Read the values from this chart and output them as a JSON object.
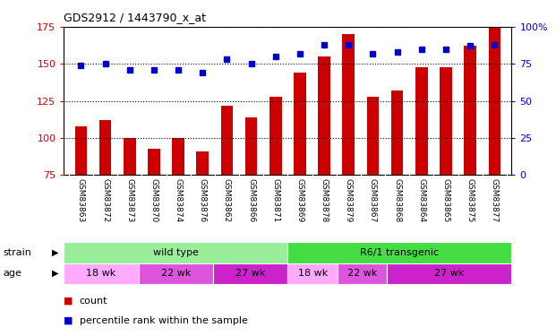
{
  "title": "GDS2912 / 1443790_x_at",
  "samples": [
    "GSM83863",
    "GSM83872",
    "GSM83873",
    "GSM83870",
    "GSM83874",
    "GSM83876",
    "GSM83862",
    "GSM83866",
    "GSM83871",
    "GSM83869",
    "GSM83878",
    "GSM83879",
    "GSM83867",
    "GSM83868",
    "GSM83864",
    "GSM83865",
    "GSM83875",
    "GSM83877"
  ],
  "counts": [
    108,
    112,
    100,
    93,
    100,
    91,
    122,
    114,
    128,
    144,
    155,
    170,
    128,
    132,
    148,
    148,
    162,
    175
  ],
  "percentiles": [
    74,
    75,
    71,
    71,
    71,
    69,
    78,
    75,
    80,
    82,
    88,
    88,
    82,
    83,
    85,
    85,
    87,
    88
  ],
  "ylim_left": [
    75,
    175
  ],
  "ylim_right": [
    0,
    100
  ],
  "yticks_left": [
    75,
    100,
    125,
    150,
    175
  ],
  "yticks_right": [
    0,
    25,
    50,
    75,
    100
  ],
  "bar_color": "#cc0000",
  "dot_color": "#0000cc",
  "bg_color": "#ffffff",
  "strain_groups": [
    {
      "label": "wild type",
      "start": 0,
      "end": 9,
      "color": "#99ee99"
    },
    {
      "label": "R6/1 transgenic",
      "start": 9,
      "end": 18,
      "color": "#44dd44"
    }
  ],
  "age_groups": [
    {
      "label": "18 wk",
      "start": 0,
      "end": 3,
      "color": "#ffaaff"
    },
    {
      "label": "22 wk",
      "start": 3,
      "end": 6,
      "color": "#dd55dd"
    },
    {
      "label": "27 wk",
      "start": 6,
      "end": 9,
      "color": "#cc22cc"
    },
    {
      "label": "18 wk",
      "start": 9,
      "end": 11,
      "color": "#ffaaff"
    },
    {
      "label": "22 wk",
      "start": 11,
      "end": 13,
      "color": "#dd55dd"
    },
    {
      "label": "27 wk",
      "start": 13,
      "end": 18,
      "color": "#cc22cc"
    }
  ],
  "xlabel_color": "#cc0000",
  "ylabel_right_color": "#0000cc"
}
